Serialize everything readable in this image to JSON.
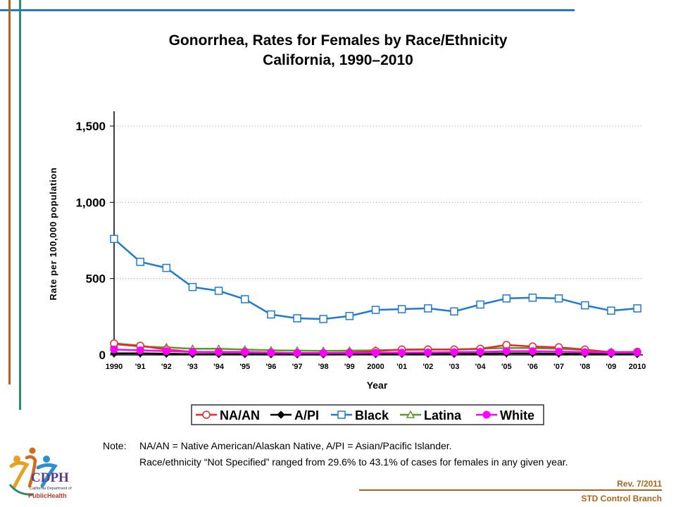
{
  "footer": {
    "revision": "Rev. 7/2011",
    "branch": "STD Control Branch"
  },
  "logo": {
    "name": "CDPH",
    "line1": "California Department of",
    "line2": "PublicHealth"
  },
  "note": {
    "label": "Note:",
    "line1": "NA/AN = Native American/Alaskan Native, A/PI = Asian/Pacific Islander.",
    "line2": "Race/ethnicity “Not Specified” ranged from 29.6% to 43.1% of cases for females in any given year."
  },
  "colors": {
    "accent_blue": "#1f7ad4",
    "accent_orange": "#b4621a",
    "accent_green": "#2e8b6e"
  },
  "chart_data": {
    "type": "line",
    "title": "Gonorrhea, Rates for Females by Race/Ethnicity",
    "subtitle": "California, 1990–2010",
    "xlabel": "Year",
    "ylabel": "Rate per 100,000 population",
    "ylim": [
      0,
      1600
    ],
    "yticks": [
      0,
      500,
      1000,
      1500
    ],
    "ytick_labels": [
      "0",
      "500",
      "1,000",
      "1,500"
    ],
    "grid": "horizontal dotted",
    "legend_position": "bottom",
    "categories": [
      "1990",
      "'91",
      "'92",
      "'93",
      "'94",
      "'95",
      "'96",
      "'97",
      "'98",
      "'99",
      "2000",
      "'01",
      "'02",
      "'03",
      "'04",
      "'05",
      "'06",
      "'07",
      "'08",
      "'09",
      "2010"
    ],
    "series": [
      {
        "name": "NA/AN",
        "color": "#e8262b",
        "marker": "circle-open",
        "values": [
          75,
          60,
          35,
          20,
          20,
          20,
          15,
          12,
          12,
          15,
          25,
          35,
          35,
          35,
          40,
          65,
          55,
          50,
          35,
          15,
          20
        ]
      },
      {
        "name": "A/PI",
        "color": "#000000",
        "marker": "diamond",
        "values": [
          10,
          10,
          8,
          5,
          5,
          5,
          4,
          3,
          3,
          4,
          5,
          6,
          7,
          7,
          8,
          10,
          10,
          9,
          7,
          5,
          5
        ]
      },
      {
        "name": "Black",
        "color": "#1f7ad4",
        "marker": "square-open",
        "values": [
          760,
          610,
          570,
          445,
          420,
          365,
          265,
          240,
          235,
          255,
          295,
          300,
          305,
          285,
          330,
          370,
          375,
          370,
          325,
          290,
          305
        ]
      },
      {
        "name": "Latina",
        "color": "#5a9a2e",
        "marker": "triangle-open",
        "values": [
          70,
          55,
          50,
          40,
          40,
          35,
          30,
          28,
          26,
          28,
          30,
          33,
          35,
          35,
          40,
          45,
          45,
          40,
          32,
          20,
          20
        ]
      },
      {
        "name": "White",
        "color": "#ff00ff",
        "marker": "circle-filled",
        "values": [
          35,
          30,
          25,
          20,
          18,
          18,
          14,
          12,
          12,
          13,
          14,
          15,
          16,
          18,
          20,
          25,
          25,
          22,
          18,
          15,
          16
        ]
      }
    ]
  }
}
